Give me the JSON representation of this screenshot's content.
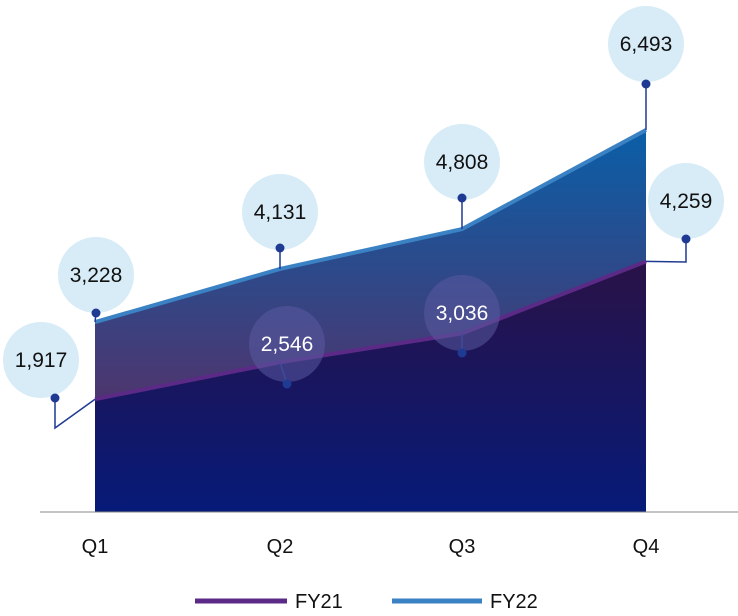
{
  "chart_data": {
    "type": "area",
    "categories": [
      "Q1",
      "Q2",
      "Q3",
      "Q4"
    ],
    "series": [
      {
        "name": "FY21",
        "values": [
          1917,
          2546,
          3036,
          4259
        ],
        "labels": [
          "1,917",
          "2,546",
          "3,036",
          "4,259"
        ],
        "color": "#5b2a86"
      },
      {
        "name": "FY22",
        "values": [
          3228,
          4131,
          4808,
          6493
        ],
        "labels": [
          "3,228",
          "4,131",
          "4,808",
          "6,493"
        ],
        "color": "#3b82c4"
      }
    ],
    "xlabel": "",
    "ylabel": "",
    "ylim": [
      0,
      8000
    ],
    "grid": false,
    "legend": "bottom",
    "colors": {
      "fy21_fill_top": "#2a1247",
      "fy21_fill_bottom": "#061a78",
      "fy22_fill_top": "#0a5fa8",
      "fy22_fill_bottom": "#6a2456",
      "bubble": "#d7ecf7",
      "bubble_dark": "#5a5aa0",
      "leader": "#1f3a93",
      "axis": "#888888"
    }
  }
}
